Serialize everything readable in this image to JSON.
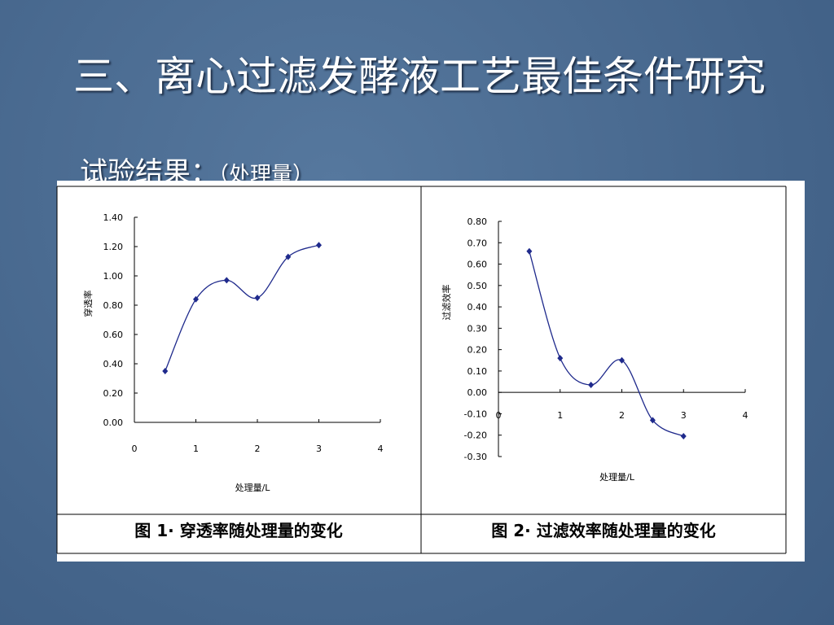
{
  "slide": {
    "title": "三、离心过滤发酵液工艺最佳条件研究",
    "subtitle": "试验结果：",
    "subtitle_note": "（处理量）"
  },
  "chart_data": [
    {
      "type": "line",
      "title": "图 1· 穿透率随处理量的变化",
      "x_label": "处理量/L",
      "y_label": "穿透率",
      "x": [
        0.5,
        1,
        1.5,
        2,
        2.5,
        3
      ],
      "series": [
        {
          "name": "穿透率",
          "color": "#1f2a8c",
          "values": [
            0.35,
            0.84,
            0.97,
            0.85,
            1.13,
            1.21
          ]
        }
      ],
      "xlim": [
        0,
        4
      ],
      "xticks": [
        0,
        1,
        2,
        3,
        4
      ],
      "ylim": [
        0,
        1.4
      ],
      "yticks": [
        {
          "value": 0,
          "label": "0.00"
        },
        {
          "value": 0.2,
          "label": "0.20"
        },
        {
          "value": 0.4,
          "label": "0.40"
        },
        {
          "value": 0.6,
          "label": "0.60"
        },
        {
          "value": 0.8,
          "label": "0.80"
        },
        {
          "value": 1,
          "label": "1.00"
        },
        {
          "value": 1.2,
          "label": "1.20"
        },
        {
          "value": 1.4,
          "label": "1.40"
        }
      ]
    },
    {
      "type": "line",
      "title": "图 2· 过滤效率随处理量的变化",
      "x_label": "处理量/L",
      "y_label": "过滤效率",
      "x": [
        0.5,
        1,
        1.5,
        2,
        2.5,
        3
      ],
      "series": [
        {
          "name": "过滤效率",
          "color": "#1f2a8c",
          "values": [
            0.66,
            0.16,
            0.035,
            0.15,
            -0.13,
            -0.205
          ]
        }
      ],
      "xlim": [
        0,
        4
      ],
      "xticks": [
        0,
        1,
        2,
        3,
        4
      ],
      "ylim": [
        -0.3,
        0.8
      ],
      "yticks": [
        {
          "value": -0.3,
          "label": "-0.30"
        },
        {
          "value": -0.2,
          "label": "-0.20"
        },
        {
          "value": -0.1,
          "label": "-0.10"
        },
        {
          "value": 0,
          "label": "0.00"
        },
        {
          "value": 0.1,
          "label": "0.10"
        },
        {
          "value": 0.2,
          "label": "0.20"
        },
        {
          "value": 0.3,
          "label": "0.30"
        },
        {
          "value": 0.4,
          "label": "0.40"
        },
        {
          "value": 0.5,
          "label": "0.50"
        },
        {
          "value": 0.6,
          "label": "0.60"
        },
        {
          "value": 0.7,
          "label": "0.70"
        },
        {
          "value": 0.8,
          "label": "0.80"
        }
      ]
    }
  ]
}
